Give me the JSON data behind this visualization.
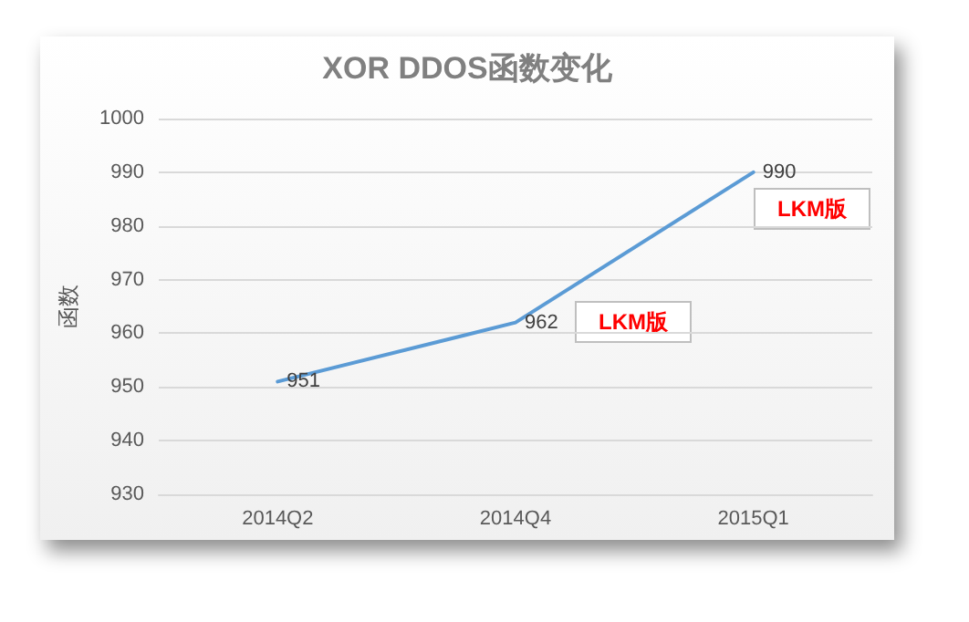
{
  "chart_data": {
    "type": "line",
    "title": "XOR DDOS函数变化",
    "ylabel": "函数",
    "categories": [
      "2014Q2",
      "2014Q4",
      "2015Q1"
    ],
    "series": [
      {
        "color": "#5b9bd5",
        "values": [
          951,
          962,
          990
        ]
      }
    ],
    "ylim": [
      930,
      1000
    ],
    "yticks": [
      930,
      940,
      950,
      960,
      970,
      980,
      990,
      1000
    ],
    "grid": "y",
    "data_labels": true,
    "marker": "none",
    "line_style": "solid",
    "annotations": [
      "LKM版",
      "LKM版"
    ]
  }
}
